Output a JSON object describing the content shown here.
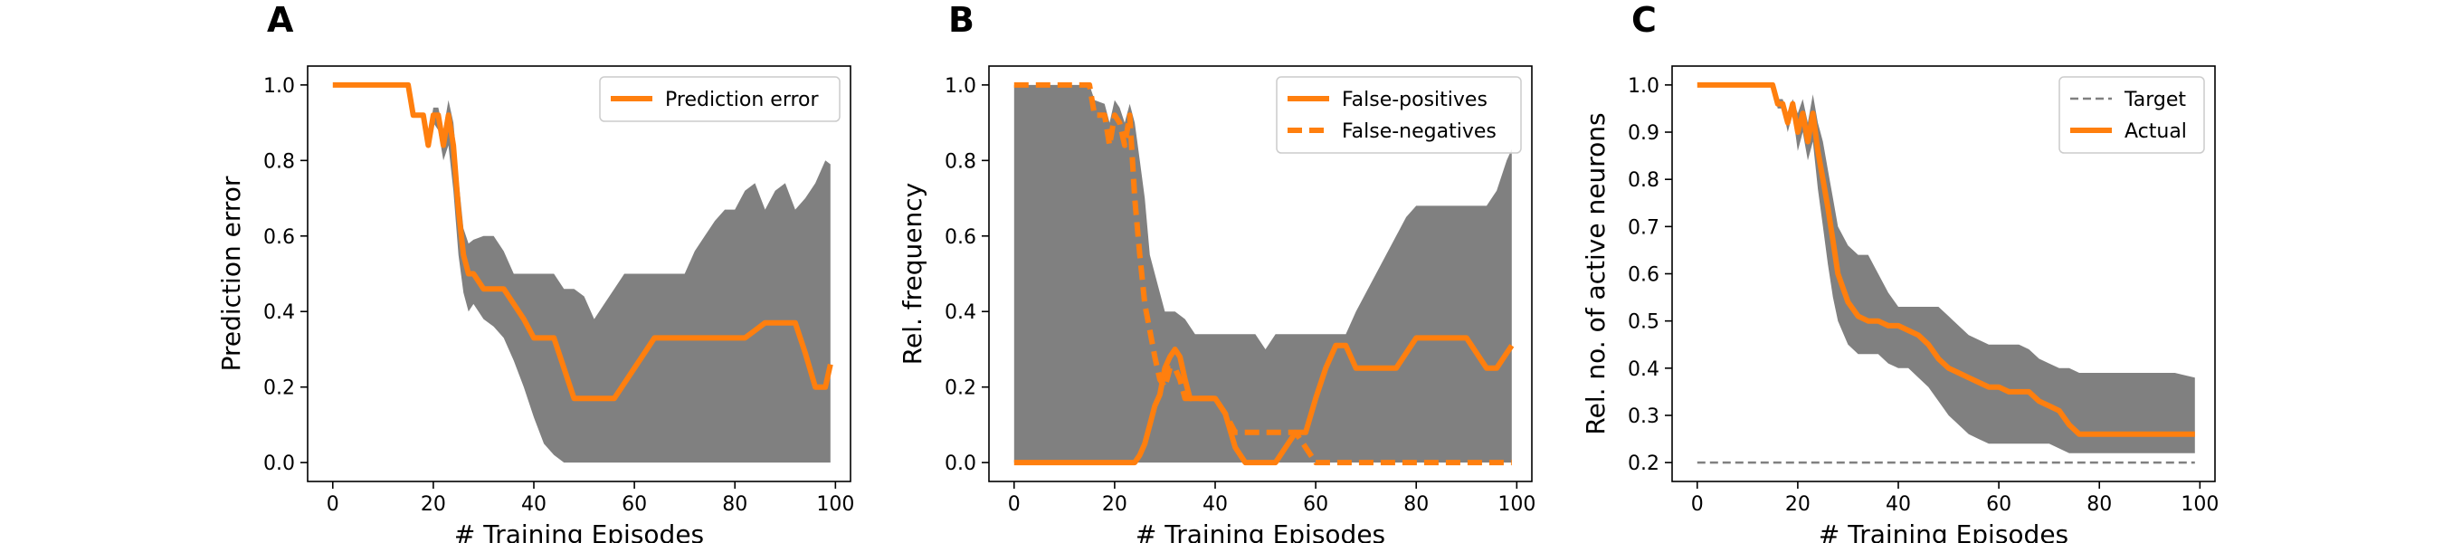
{
  "chart_data": [
    {
      "panel": "A",
      "type": "line",
      "xlabel": "# Training Episodes",
      "ylabel": "Prediction error",
      "xlim": [
        -5,
        103
      ],
      "ylim": [
        -0.05,
        1.05
      ],
      "xticks": [
        0,
        20,
        40,
        60,
        80,
        100
      ],
      "yticks": [
        0.0,
        0.2,
        0.4,
        0.6,
        0.8,
        1.0
      ],
      "ytick_labels": [
        "0.0",
        "0.2",
        "0.4",
        "0.6",
        "0.8",
        "1.0"
      ],
      "grid": false,
      "legend_position": "upper-right",
      "series": [
        {
          "name": "Prediction error",
          "color": "#ff7f0e",
          "style": "solid",
          "x": [
            0,
            15,
            16,
            18,
            19,
            20,
            21,
            22,
            23,
            24,
            25,
            26,
            27,
            28,
            30,
            32,
            34,
            36,
            38,
            40,
            42,
            44,
            46,
            48,
            50,
            52,
            54,
            56,
            58,
            60,
            62,
            64,
            66,
            68,
            70,
            72,
            74,
            76,
            78,
            80,
            82,
            84,
            86,
            88,
            90,
            92,
            94,
            96,
            98,
            99
          ],
          "y": [
            1.0,
            1.0,
            0.92,
            0.92,
            0.84,
            0.92,
            0.92,
            0.84,
            0.92,
            0.84,
            0.67,
            0.55,
            0.5,
            0.5,
            0.46,
            0.46,
            0.46,
            0.42,
            0.38,
            0.33,
            0.33,
            0.33,
            0.25,
            0.17,
            0.17,
            0.17,
            0.17,
            0.17,
            0.21,
            0.25,
            0.29,
            0.33,
            0.33,
            0.33,
            0.33,
            0.33,
            0.33,
            0.33,
            0.33,
            0.33,
            0.33,
            0.35,
            0.37,
            0.37,
            0.37,
            0.37,
            0.29,
            0.2,
            0.2,
            0.26
          ]
        }
      ],
      "band": {
        "color": "#808080",
        "x": [
          0,
          15,
          16,
          18,
          19,
          20,
          21,
          22,
          23,
          24,
          25,
          26,
          27,
          28,
          30,
          32,
          34,
          36,
          38,
          40,
          42,
          44,
          46,
          48,
          50,
          52,
          54,
          56,
          58,
          60,
          62,
          64,
          66,
          68,
          70,
          72,
          74,
          76,
          78,
          80,
          82,
          84,
          86,
          88,
          90,
          92,
          94,
          96,
          98,
          99
        ],
        "lower": [
          1.0,
          1.0,
          0.92,
          0.92,
          0.84,
          0.9,
          0.88,
          0.8,
          0.84,
          0.72,
          0.55,
          0.45,
          0.4,
          0.42,
          0.38,
          0.36,
          0.33,
          0.27,
          0.2,
          0.12,
          0.05,
          0.02,
          0.0,
          0.0,
          0.0,
          0.0,
          0.0,
          0.0,
          0.0,
          0.0,
          0.0,
          0.0,
          0.0,
          0.0,
          0.0,
          0.0,
          0.0,
          0.0,
          0.0,
          0.0,
          0.0,
          0.0,
          0.0,
          0.0,
          0.0,
          0.0,
          0.0,
          0.0,
          0.0,
          0.0
        ],
        "upper": [
          1.0,
          1.0,
          0.92,
          0.92,
          0.86,
          0.94,
          0.94,
          0.88,
          0.96,
          0.9,
          0.75,
          0.62,
          0.58,
          0.59,
          0.6,
          0.6,
          0.56,
          0.5,
          0.5,
          0.5,
          0.5,
          0.5,
          0.46,
          0.46,
          0.44,
          0.38,
          0.42,
          0.46,
          0.5,
          0.5,
          0.5,
          0.5,
          0.5,
          0.5,
          0.5,
          0.56,
          0.6,
          0.64,
          0.67,
          0.67,
          0.72,
          0.74,
          0.67,
          0.72,
          0.74,
          0.67,
          0.7,
          0.74,
          0.8,
          0.79
        ]
      }
    },
    {
      "panel": "B",
      "type": "line",
      "xlabel": "# Training Episodes",
      "ylabel": "Rel. frequency",
      "xlim": [
        -5,
        103
      ],
      "ylim": [
        -0.05,
        1.05
      ],
      "xticks": [
        0,
        20,
        40,
        60,
        80,
        100
      ],
      "yticks": [
        0.0,
        0.2,
        0.4,
        0.6,
        0.8,
        1.0
      ],
      "ytick_labels": [
        "0.0",
        "0.2",
        "0.4",
        "0.6",
        "0.8",
        "1.0"
      ],
      "grid": false,
      "legend_position": "upper-right",
      "series": [
        {
          "name": "False-positives",
          "color": "#ff7f0e",
          "style": "solid",
          "x": [
            0,
            24,
            25,
            26,
            27,
            28,
            29,
            30,
            31,
            32,
            33,
            34,
            35,
            36,
            38,
            40,
            42,
            44,
            46,
            48,
            50,
            52,
            54,
            56,
            58,
            60,
            62,
            64,
            66,
            68,
            70,
            72,
            74,
            76,
            78,
            80,
            82,
            84,
            86,
            88,
            90,
            92,
            94,
            96,
            98,
            99
          ],
          "y": [
            0.0,
            0.0,
            0.02,
            0.05,
            0.1,
            0.15,
            0.18,
            0.25,
            0.28,
            0.3,
            0.28,
            0.22,
            0.17,
            0.17,
            0.17,
            0.17,
            0.13,
            0.04,
            0.0,
            0.0,
            0.0,
            0.0,
            0.04,
            0.08,
            0.08,
            0.17,
            0.25,
            0.31,
            0.31,
            0.25,
            0.25,
            0.25,
            0.25,
            0.25,
            0.29,
            0.33,
            0.33,
            0.33,
            0.33,
            0.33,
            0.33,
            0.29,
            0.25,
            0.25,
            0.29,
            0.31
          ]
        },
        {
          "name": "False-negatives",
          "color": "#ff7f0e",
          "style": "dashed",
          "x": [
            0,
            15,
            16,
            18,
            19,
            20,
            21,
            22,
            23,
            24,
            25,
            26,
            27,
            28,
            29,
            30,
            31,
            32,
            33,
            34,
            36,
            38,
            40,
            42,
            44,
            46,
            48,
            50,
            52,
            54,
            56,
            58,
            60,
            62,
            64,
            66,
            70,
            80,
            90,
            99
          ],
          "y": [
            1.0,
            1.0,
            0.92,
            0.92,
            0.84,
            0.92,
            0.9,
            0.84,
            0.92,
            0.7,
            0.55,
            0.42,
            0.35,
            0.28,
            0.22,
            0.2,
            0.25,
            0.25,
            0.22,
            0.17,
            0.17,
            0.17,
            0.17,
            0.13,
            0.08,
            0.08,
            0.08,
            0.08,
            0.08,
            0.08,
            0.08,
            0.04,
            0.0,
            0.0,
            0.0,
            0.0,
            0.0,
            0.0,
            0.0,
            0.0
          ]
        }
      ],
      "band": {
        "color": "#808080",
        "x": [
          0,
          15,
          16,
          18,
          19,
          20,
          21,
          22,
          23,
          24,
          25,
          26,
          27,
          28,
          30,
          32,
          34,
          36,
          38,
          40,
          42,
          44,
          46,
          48,
          50,
          52,
          54,
          56,
          58,
          60,
          62,
          64,
          66,
          68,
          70,
          72,
          74,
          76,
          78,
          80,
          82,
          84,
          86,
          88,
          90,
          92,
          94,
          96,
          98,
          99
        ],
        "lower": [
          0.0,
          0.0,
          0.0,
          0.0,
          0.0,
          0.0,
          0.0,
          0.0,
          0.0,
          0.0,
          0.0,
          0.0,
          0.0,
          0.0,
          0.0,
          0.0,
          0.0,
          0.0,
          0.0,
          0.0,
          0.0,
          0.0,
          0.0,
          0.0,
          0.0,
          0.0,
          0.0,
          0.0,
          0.0,
          0.0,
          0.0,
          0.0,
          0.0,
          0.0,
          0.0,
          0.0,
          0.0,
          0.0,
          0.0,
          0.0,
          0.0,
          0.0,
          0.0,
          0.0,
          0.0,
          0.0,
          0.0,
          0.0,
          0.0,
          0.0
        ],
        "upper": [
          1.0,
          1.0,
          0.96,
          0.95,
          0.9,
          0.96,
          0.94,
          0.9,
          0.95,
          0.9,
          0.8,
          0.7,
          0.55,
          0.5,
          0.4,
          0.4,
          0.38,
          0.34,
          0.34,
          0.34,
          0.34,
          0.34,
          0.34,
          0.34,
          0.3,
          0.34,
          0.34,
          0.34,
          0.34,
          0.34,
          0.34,
          0.34,
          0.34,
          0.4,
          0.45,
          0.5,
          0.55,
          0.6,
          0.65,
          0.68,
          0.68,
          0.68,
          0.68,
          0.68,
          0.68,
          0.68,
          0.68,
          0.72,
          0.8,
          0.83
        ]
      }
    },
    {
      "panel": "C",
      "type": "line",
      "xlabel": "# Training Episodes",
      "ylabel": "Rel. no. of active neurons",
      "xlim": [
        -5,
        103
      ],
      "ylim": [
        0.16,
        1.04
      ],
      "xticks": [
        0,
        20,
        40,
        60,
        80,
        100
      ],
      "yticks": [
        0.2,
        0.3,
        0.4,
        0.5,
        0.6,
        0.7,
        0.8,
        0.9,
        1.0
      ],
      "ytick_labels": [
        "0.2",
        "0.3",
        "0.4",
        "0.5",
        "0.6",
        "0.7",
        "0.8",
        "0.9",
        "1.0"
      ],
      "grid": false,
      "legend_position": "upper-right",
      "series": [
        {
          "name": "Target",
          "color": "#808080",
          "style": "dashed",
          "x": [
            0,
            99
          ],
          "y": [
            0.2,
            0.2
          ]
        },
        {
          "name": "Actual",
          "color": "#ff7f0e",
          "style": "solid",
          "x": [
            0,
            15,
            16,
            17,
            18,
            19,
            20,
            21,
            22,
            23,
            24,
            25,
            26,
            27,
            28,
            30,
            32,
            34,
            36,
            38,
            40,
            42,
            44,
            46,
            48,
            50,
            52,
            54,
            56,
            58,
            60,
            62,
            64,
            66,
            68,
            70,
            72,
            74,
            76,
            78,
            80,
            85,
            90,
            95,
            99
          ],
          "y": [
            1.0,
            1.0,
            0.96,
            0.96,
            0.92,
            0.96,
            0.9,
            0.94,
            0.88,
            0.94,
            0.86,
            0.8,
            0.74,
            0.67,
            0.6,
            0.54,
            0.51,
            0.5,
            0.5,
            0.49,
            0.49,
            0.48,
            0.47,
            0.45,
            0.42,
            0.4,
            0.39,
            0.38,
            0.37,
            0.36,
            0.36,
            0.35,
            0.35,
            0.35,
            0.33,
            0.32,
            0.31,
            0.28,
            0.26,
            0.26,
            0.26,
            0.26,
            0.26,
            0.26,
            0.26
          ]
        }
      ],
      "band": {
        "color": "#808080",
        "x": [
          0,
          15,
          16,
          17,
          18,
          19,
          20,
          21,
          22,
          23,
          24,
          25,
          26,
          27,
          28,
          30,
          32,
          34,
          36,
          38,
          40,
          42,
          44,
          46,
          48,
          50,
          52,
          54,
          56,
          58,
          60,
          62,
          64,
          66,
          68,
          70,
          72,
          74,
          76,
          78,
          80,
          85,
          90,
          95,
          99
        ],
        "lower": [
          1.0,
          1.0,
          0.95,
          0.95,
          0.9,
          0.94,
          0.86,
          0.9,
          0.84,
          0.88,
          0.78,
          0.7,
          0.62,
          0.55,
          0.5,
          0.45,
          0.43,
          0.43,
          0.43,
          0.41,
          0.4,
          0.4,
          0.38,
          0.36,
          0.33,
          0.3,
          0.28,
          0.26,
          0.25,
          0.24,
          0.24,
          0.24,
          0.24,
          0.24,
          0.24,
          0.24,
          0.23,
          0.22,
          0.22,
          0.22,
          0.22,
          0.22,
          0.22,
          0.22,
          0.22
        ],
        "upper": [
          1.0,
          1.0,
          0.97,
          0.97,
          0.94,
          0.97,
          0.94,
          0.97,
          0.92,
          0.98,
          0.92,
          0.88,
          0.82,
          0.76,
          0.7,
          0.66,
          0.64,
          0.64,
          0.6,
          0.56,
          0.53,
          0.53,
          0.53,
          0.53,
          0.53,
          0.51,
          0.49,
          0.47,
          0.46,
          0.45,
          0.45,
          0.45,
          0.45,
          0.44,
          0.42,
          0.41,
          0.4,
          0.4,
          0.39,
          0.39,
          0.39,
          0.39,
          0.39,
          0.39,
          0.38
        ]
      }
    }
  ]
}
